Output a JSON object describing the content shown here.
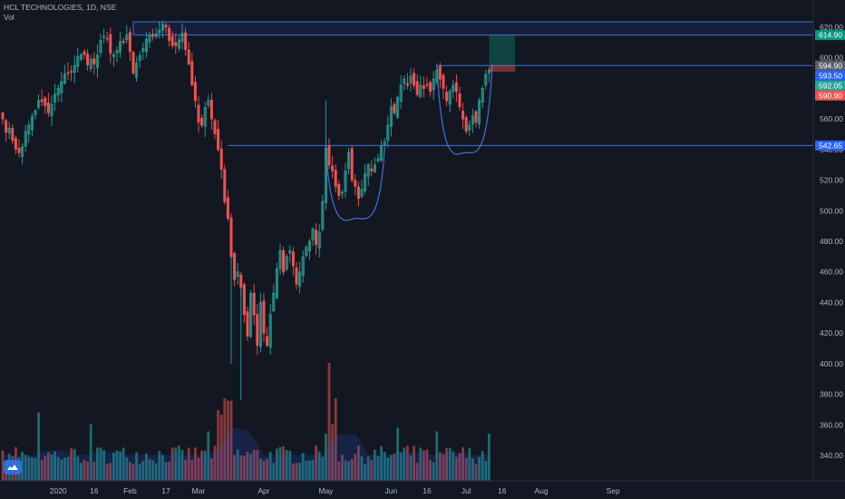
{
  "header": {
    "symbol": "HCL TECHNOLOGIES",
    "interval": "1D",
    "exchange": "NSE",
    "volume_label": "Vol"
  },
  "colors": {
    "background": "#131722",
    "up": "#26a69a",
    "down": "#ef5350",
    "up_volume": "#1f6b66",
    "down_volume": "#8a3a3c",
    "drawing": "#2962ff",
    "axis_text": "#b2b5be"
  },
  "chart_data": {
    "type": "candlestick",
    "title": "HCL TECHNOLOGIES, 1D, NSE",
    "ylim": [
      330,
      628
    ],
    "y_ticks": [
      340,
      360,
      380,
      400,
      420,
      440,
      460,
      480,
      500,
      520,
      540,
      560,
      580,
      600,
      620
    ],
    "y_tick_labels": [
      "340.00",
      "360.00",
      "380.00",
      "400.00",
      "420.00",
      "440.00",
      "460.00",
      "480.00",
      "500.00",
      "520.00",
      "540.00",
      "560.00",
      "580.00",
      "600.00",
      "620.00"
    ],
    "x_ticks": [
      {
        "index": 17,
        "label": "2020"
      },
      {
        "index": 28,
        "label": "16"
      },
      {
        "index": 39,
        "label": "Feb"
      },
      {
        "index": 50,
        "label": "17"
      },
      {
        "index": 60,
        "label": "Mar"
      },
      {
        "index": 80,
        "label": "Apr"
      },
      {
        "index": 99,
        "label": "May"
      },
      {
        "index": 119,
        "label": "Jun"
      },
      {
        "index": 130,
        "label": "16"
      },
      {
        "index": 142,
        "label": "Jul"
      },
      {
        "index": 153,
        "label": "16"
      },
      {
        "index": 165,
        "label": "Aug"
      },
      {
        "index": 187,
        "label": "Sep"
      }
    ],
    "price_tags": [
      {
        "value": 614.9,
        "label": "614.90",
        "color": "#089981"
      },
      {
        "value": 594.9,
        "label": "594.90",
        "color": "#5d606b"
      },
      {
        "value": 593.5,
        "label": "593.50",
        "color": "#2962ff"
      },
      {
        "value": 592.05,
        "label": "592.05",
        "color": "#26a69a"
      },
      {
        "value": 590.9,
        "label": "590.90",
        "color": "#ef5350"
      },
      {
        "value": 542.65,
        "label": "542.65",
        "color": "#2962ff"
      }
    ],
    "volume_scale": 100,
    "key_points": [
      [
        0,
        560
      ],
      [
        3,
        546
      ],
      [
        5,
        538
      ],
      [
        8,
        556
      ],
      [
        11,
        572
      ],
      [
        14,
        564
      ],
      [
        17,
        580
      ],
      [
        20,
        590
      ],
      [
        24,
        602
      ],
      [
        28,
        596
      ],
      [
        31,
        614
      ],
      [
        34,
        602
      ],
      [
        37,
        610
      ],
      [
        38,
        615
      ],
      [
        40,
        590
      ],
      [
        43,
        606
      ],
      [
        46,
        614
      ],
      [
        49,
        622
      ],
      [
        52,
        608
      ],
      [
        55,
        616
      ],
      [
        57,
        596
      ],
      [
        59,
        572
      ],
      [
        60,
        558
      ],
      [
        61,
        556
      ],
      [
        63,
        572
      ],
      [
        64,
        560
      ],
      [
        66,
        540
      ],
      [
        67,
        527
      ],
      [
        68,
        506
      ],
      [
        69,
        495
      ],
      [
        70,
        470
      ],
      [
        71,
        455
      ],
      [
        72,
        460
      ],
      [
        73,
        450
      ],
      [
        74,
        432
      ],
      [
        75,
        418
      ],
      [
        76,
        446
      ],
      [
        77,
        432
      ],
      [
        78,
        412
      ],
      [
        79,
        440
      ],
      [
        80,
        420
      ],
      [
        81,
        412
      ],
      [
        82,
        432
      ],
      [
        83,
        446
      ],
      [
        84,
        462
      ],
      [
        85,
        474
      ],
      [
        86,
        460
      ],
      [
        87,
        470
      ],
      [
        88,
        474
      ],
      [
        89,
        464
      ],
      [
        90,
        452
      ],
      [
        91,
        460
      ],
      [
        92,
        470
      ],
      [
        93,
        476
      ],
      [
        94,
        480
      ],
      [
        95,
        488
      ],
      [
        96,
        478
      ],
      [
        97,
        486
      ],
      [
        98,
        506
      ],
      [
        99,
        541
      ],
      [
        100,
        530
      ],
      [
        101,
        526
      ],
      [
        102,
        516
      ],
      [
        103,
        510
      ],
      [
        104,
        512
      ],
      [
        105,
        526
      ],
      [
        106,
        538
      ],
      [
        107,
        520
      ],
      [
        108,
        516
      ],
      [
        109,
        508
      ],
      [
        110,
        514
      ],
      [
        111,
        524
      ],
      [
        112,
        530
      ],
      [
        113,
        526
      ],
      [
        114,
        530
      ],
      [
        115,
        534
      ],
      [
        116,
        542
      ],
      [
        117,
        545
      ],
      [
        118,
        556
      ],
      [
        119,
        568
      ],
      [
        120,
        564
      ],
      [
        121,
        574
      ],
      [
        122,
        582
      ],
      [
        123,
        586
      ],
      [
        124,
        582
      ],
      [
        125,
        588
      ],
      [
        126,
        582
      ],
      [
        127,
        576
      ],
      [
        128,
        582
      ],
      [
        129,
        580
      ],
      [
        130,
        582
      ],
      [
        131,
        578
      ],
      [
        132,
        586
      ],
      [
        133,
        592
      ],
      [
        134,
        586
      ],
      [
        135,
        580
      ],
      [
        136,
        572
      ],
      [
        137,
        578
      ],
      [
        138,
        582
      ],
      [
        139,
        578
      ],
      [
        140,
        568
      ],
      [
        141,
        560
      ],
      [
        142,
        552
      ],
      [
        143,
        556
      ],
      [
        144,
        562
      ],
      [
        145,
        558
      ],
      [
        146,
        572
      ],
      [
        147,
        580
      ],
      [
        148,
        589
      ],
      [
        149,
        592
      ]
    ],
    "volume_spikes": {
      "11": 58,
      "27": 48,
      "63": 42,
      "66": 60,
      "67": 56,
      "68": 70,
      "69": 68,
      "70": 68,
      "99": 40,
      "100": 100,
      "101": 48,
      "102": 70,
      "121": 45,
      "133": 42,
      "149": 40
    },
    "drawings": [
      {
        "kind": "zone",
        "label": "resistance-zone",
        "y1": 614.9,
        "y2": 623.5,
        "x1": 40,
        "x2": 202
      },
      {
        "kind": "hline",
        "label": "support-line",
        "y": 542.65,
        "x1": 69,
        "x2": 202
      },
      {
        "kind": "hline",
        "label": "rim-line",
        "y": 594.9,
        "x1": 133,
        "x2": 202
      },
      {
        "kind": "cup",
        "x1": 99,
        "x2": 117,
        "top": 541,
        "bottom": 495
      },
      {
        "kind": "cup",
        "x1": 133,
        "x2": 150,
        "top": 596,
        "bottom": 538
      }
    ],
    "position": {
      "entry": 594.9,
      "target": 614.9,
      "stop": 590.9,
      "x1": 149,
      "x2": 157
    }
  }
}
